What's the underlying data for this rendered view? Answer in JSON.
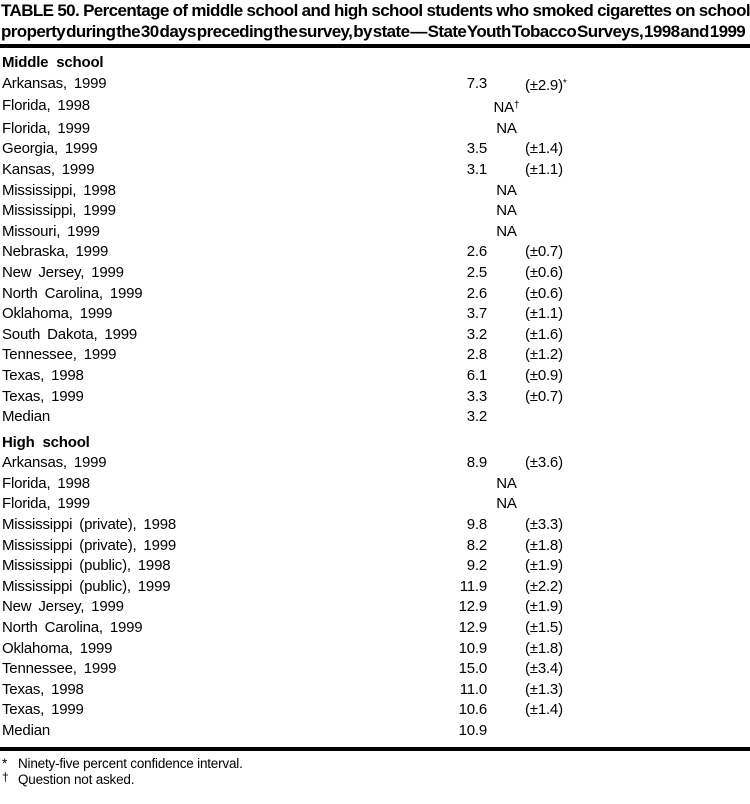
{
  "title": "TABLE 50. Percentage of middle school and high school students who smoked cigarettes on school property during the 30 days preceding the survey, by state — State Youth Tobacco Surveys, 1998 and 1999",
  "table": {
    "sections": [
      {
        "header": "Middle school",
        "rows": [
          {
            "label": "Arkansas, 1999",
            "value": "7.3",
            "ci": "(±2.9)",
            "sup": "*"
          },
          {
            "label": "Florida, 1998",
            "value": "NA",
            "ci": "",
            "sup": "†"
          },
          {
            "label": "Florida, 1999",
            "value": "NA",
            "ci": "",
            "sup": ""
          },
          {
            "label": "Georgia, 1999",
            "value": "3.5",
            "ci": "(±1.4)",
            "sup": ""
          },
          {
            "label": "Kansas, 1999",
            "value": "3.1",
            "ci": "(±1.1)",
            "sup": ""
          },
          {
            "label": "Mississippi, 1998",
            "value": "NA",
            "ci": "",
            "sup": ""
          },
          {
            "label": "Mississippi, 1999",
            "value": "NA",
            "ci": "",
            "sup": ""
          },
          {
            "label": "Missouri, 1999",
            "value": "NA",
            "ci": "",
            "sup": ""
          },
          {
            "label": "Nebraska, 1999",
            "value": "2.6",
            "ci": "(±0.7)",
            "sup": ""
          },
          {
            "label": "New Jersey, 1999",
            "value": "2.5",
            "ci": "(±0.6)",
            "sup": ""
          },
          {
            "label": "North Carolina, 1999",
            "value": "2.6",
            "ci": "(±0.6)",
            "sup": ""
          },
          {
            "label": "Oklahoma, 1999",
            "value": "3.7",
            "ci": "(±1.1)",
            "sup": ""
          },
          {
            "label": "South Dakota, 1999",
            "value": "3.2",
            "ci": "(±1.6)",
            "sup": ""
          },
          {
            "label": "Tennessee, 1999",
            "value": "2.8",
            "ci": "(±1.2)",
            "sup": ""
          },
          {
            "label": "Texas, 1998",
            "value": "6.1",
            "ci": "(±0.9)",
            "sup": ""
          },
          {
            "label": "Texas, 1999",
            "value": "3.3",
            "ci": "(±0.7)",
            "sup": ""
          },
          {
            "label": "Median",
            "value": "3.2",
            "ci": "",
            "sup": ""
          }
        ]
      },
      {
        "header": "High school",
        "rows": [
          {
            "label": "Arkansas, 1999",
            "value": "8.9",
            "ci": "(±3.6)",
            "sup": ""
          },
          {
            "label": "Florida, 1998",
            "value": "NA",
            "ci": "",
            "sup": ""
          },
          {
            "label": "Florida, 1999",
            "value": "NA",
            "ci": "",
            "sup": ""
          },
          {
            "label": "Mississippi (private), 1998",
            "value": "9.8",
            "ci": "(±3.3)",
            "sup": ""
          },
          {
            "label": "Mississippi (private), 1999",
            "value": "8.2",
            "ci": "(±1.8)",
            "sup": ""
          },
          {
            "label": "Mississippi (public), 1998",
            "value": "9.2",
            "ci": "(±1.9)",
            "sup": ""
          },
          {
            "label": "Mississippi (public), 1999",
            "value": "11.9",
            "ci": "(±2.2)",
            "sup": ""
          },
          {
            "label": "New Jersey, 1999",
            "value": "12.9",
            "ci": "(±1.9)",
            "sup": ""
          },
          {
            "label": "North Carolina, 1999",
            "value": "12.9",
            "ci": "(±1.5)",
            "sup": ""
          },
          {
            "label": "Oklahoma, 1999",
            "value": "10.9",
            "ci": "(±1.8)",
            "sup": ""
          },
          {
            "label": "Tennessee, 1999",
            "value": "15.0",
            "ci": "(±3.4)",
            "sup": ""
          },
          {
            "label": "Texas, 1998",
            "value": "11.0",
            "ci": "(±1.3)",
            "sup": ""
          },
          {
            "label": "Texas, 1999",
            "value": "10.6",
            "ci": "(±1.4)",
            "sup": ""
          },
          {
            "label": "Median",
            "value": "10.9",
            "ci": "",
            "sup": ""
          }
        ]
      }
    ]
  },
  "footnotes": [
    {
      "marker": "*",
      "text": "Ninety-five percent confidence interval."
    },
    {
      "marker": "†",
      "text": "Question not asked."
    }
  ]
}
